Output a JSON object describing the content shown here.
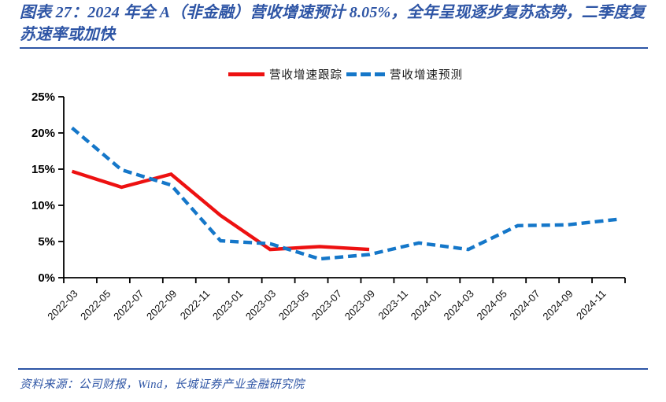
{
  "accent_color": "#2e55a5",
  "figure": {
    "title": "图表 27：2024 年全 A（非金融）营收增速预计 8.05%，全年呈现逐步复苏态势，二季度复苏速率或加快"
  },
  "legend": {
    "items": [
      {
        "label": "营收增速跟踪",
        "style": "solid",
        "color": "#ed1111"
      },
      {
        "label": "营收增速预测",
        "style": "dashed",
        "color": "#1577c9"
      }
    ]
  },
  "source": {
    "text": "资料来源：公司财报，Wind，长城证券产业金融研究院"
  },
  "chart_data": {
    "type": "line",
    "title": "2024 年全 A（非金融）营收增速预计 8.05%，全年呈现逐步复苏态势，二季度复苏速率或加快",
    "grid": false,
    "legend_position": "top",
    "y_axis": {
      "min": 0,
      "max": 25,
      "ticks": [
        "0%",
        "5%",
        "10%",
        "15%",
        "20%",
        "25%"
      ],
      "unit": "%"
    },
    "x_axis": {
      "first_month": "2022-03",
      "last_month": "2024-12",
      "n_categories": 34,
      "tick_every_months": 2,
      "labels": [
        "2022-03",
        "2022-05",
        "2022-07",
        "2022-09",
        "2022-11",
        "2023-01",
        "2023-03",
        "2023-05",
        "2023-07",
        "2023-09",
        "2023-11",
        "2024-01",
        "2024-03",
        "2024-05",
        "2024-07",
        "2024-09",
        "2024-11"
      ]
    },
    "series": [
      {
        "name": "营收增速跟踪",
        "style": "solid",
        "color": "#ed1111",
        "points": [
          [
            "2022-03",
            14.7
          ],
          [
            "2022-06",
            12.5
          ],
          [
            "2022-09",
            14.3
          ],
          [
            "2022-12",
            8.6
          ],
          [
            "2023-03",
            3.9
          ],
          [
            "2023-06",
            4.3
          ],
          [
            "2023-09",
            3.9
          ]
        ]
      },
      {
        "name": "营收增速预测",
        "style": "dashed",
        "color": "#1577c9",
        "points": [
          [
            "2022-03",
            20.7
          ],
          [
            "2022-06",
            14.9
          ],
          [
            "2022-09",
            12.8
          ],
          [
            "2022-12",
            5.1
          ],
          [
            "2023-03",
            4.7
          ],
          [
            "2023-06",
            2.6
          ],
          [
            "2023-09",
            3.2
          ],
          [
            "2023-12",
            4.8
          ],
          [
            "2024-03",
            3.9
          ],
          [
            "2024-06",
            7.2
          ],
          [
            "2024-09",
            7.3
          ],
          [
            "2024-12",
            8.05
          ]
        ]
      }
    ]
  }
}
